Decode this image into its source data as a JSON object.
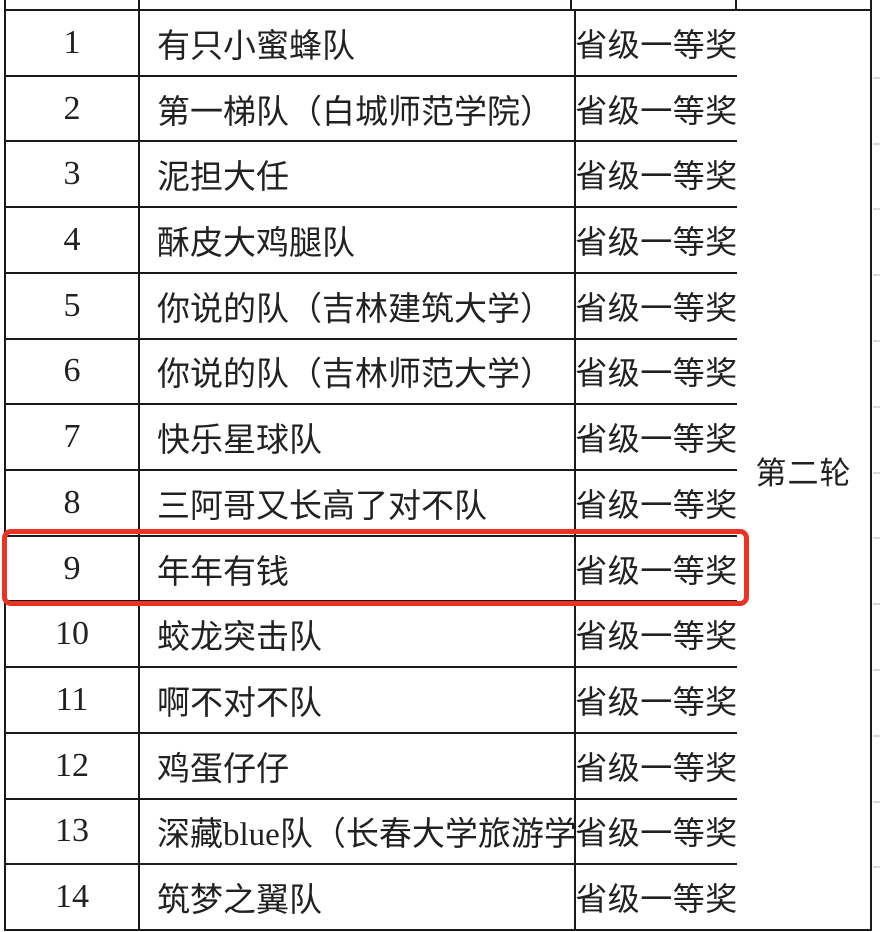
{
  "table": {
    "award_column_value": "省级一等奖",
    "round_label": "第二轮",
    "rows": [
      {
        "rank": "1",
        "team": "有只小蜜蜂队",
        "award": "省级一等奖"
      },
      {
        "rank": "2",
        "team": "第一梯队（白城师范学院）",
        "award": "省级一等奖"
      },
      {
        "rank": "3",
        "team": "泥担大任",
        "award": "省级一等奖"
      },
      {
        "rank": "4",
        "team": "酥皮大鸡腿队",
        "award": "省级一等奖"
      },
      {
        "rank": "5",
        "team": "你说的队（吉林建筑大学）",
        "award": "省级一等奖"
      },
      {
        "rank": "6",
        "team": "你说的队（吉林师范大学）",
        "award": "省级一等奖"
      },
      {
        "rank": "7",
        "team": "快乐星球队",
        "award": "省级一等奖"
      },
      {
        "rank": "8",
        "team": "三阿哥又长高了对不队",
        "award": "省级一等奖"
      },
      {
        "rank": "9",
        "team": "年年有钱",
        "award": "省级一等奖"
      },
      {
        "rank": "10",
        "team": "蛟龙突击队",
        "award": "省级一等奖"
      },
      {
        "rank": "11",
        "team": "啊不对不队",
        "award": "省级一等奖"
      },
      {
        "rank": "12",
        "team": "鸡蛋仔仔",
        "award": "省级一等奖"
      },
      {
        "rank": "13",
        "team": "深藏blue队（长春大学旅游学院）",
        "award": "省级一等奖"
      },
      {
        "rank": "14",
        "team": "筑梦之翼队",
        "award": "省级一等奖"
      }
    ],
    "highlighted_rank": "9"
  },
  "colors": {
    "highlight_red": "#ec3323",
    "grid_line": "#1a1a1a",
    "text": "#212121",
    "background": "#ffffff"
  }
}
